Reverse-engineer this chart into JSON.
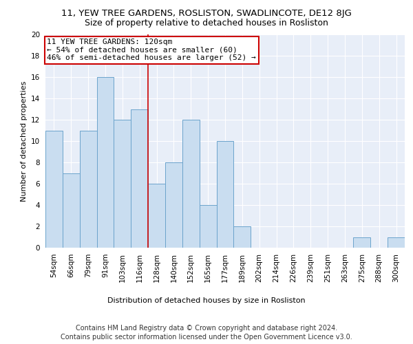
{
  "title": "11, YEW TREE GARDENS, ROSLISTON, SWADLINCOTE, DE12 8JG",
  "subtitle": "Size of property relative to detached houses in Rosliston",
  "xlabel": "Distribution of detached houses by size in Rosliston",
  "ylabel": "Number of detached properties",
  "categories": [
    "54sqm",
    "66sqm",
    "79sqm",
    "91sqm",
    "103sqm",
    "116sqm",
    "128sqm",
    "140sqm",
    "152sqm",
    "165sqm",
    "177sqm",
    "189sqm",
    "202sqm",
    "214sqm",
    "226sqm",
    "239sqm",
    "251sqm",
    "263sqm",
    "275sqm",
    "288sqm",
    "300sqm"
  ],
  "values": [
    11,
    7,
    11,
    16,
    12,
    13,
    6,
    8,
    12,
    4,
    10,
    2,
    0,
    0,
    0,
    0,
    0,
    0,
    1,
    0,
    1
  ],
  "bar_color": "#c9ddf0",
  "bar_edge_color": "#6ba3cc",
  "vline_x": 6.0,
  "vline_color": "#cc0000",
  "annotation_text": "11 YEW TREE GARDENS: 120sqm\n← 54% of detached houses are smaller (60)\n46% of semi-detached houses are larger (52) →",
  "annotation_box_color": "#ffffff",
  "annotation_box_edge": "#cc0000",
  "ylim": [
    0,
    20
  ],
  "yticks": [
    0,
    2,
    4,
    6,
    8,
    10,
    12,
    14,
    16,
    18,
    20
  ],
  "footer_line1": "Contains HM Land Registry data © Crown copyright and database right 2024.",
  "footer_line2": "Contains public sector information licensed under the Open Government Licence v3.0.",
  "bg_color": "#e8eef8",
  "fig_bg_color": "#ffffff",
  "grid_color": "#ffffff",
  "title_fontsize": 9.5,
  "subtitle_fontsize": 9,
  "axis_label_fontsize": 8,
  "tick_fontsize": 7.5,
  "footer_fontsize": 7,
  "annotation_fontsize": 8
}
